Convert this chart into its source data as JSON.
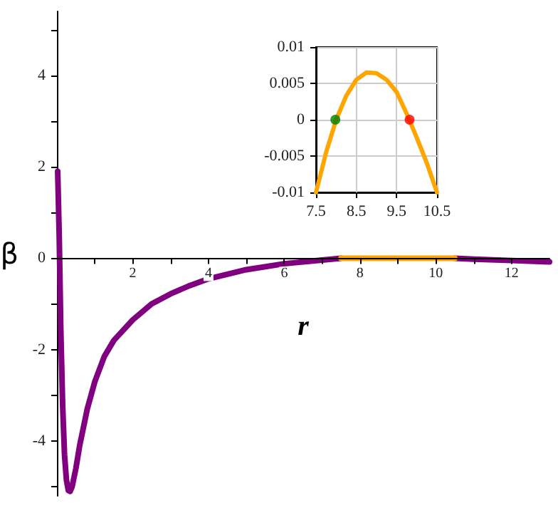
{
  "chart_data": [
    {
      "type": "line",
      "xlabel": "r",
      "ylabel": "β",
      "xlim": [
        0,
        13
      ],
      "ylim": [
        -5.2,
        5.4
      ],
      "xticks": [
        {
          "value": 1,
          "label": null
        },
        2,
        {
          "value": 3,
          "label": null
        },
        4,
        {
          "value": 5,
          "label": null
        },
        6,
        {
          "value": 7,
          "label": null
        },
        8,
        {
          "value": 9,
          "label": null
        },
        10,
        {
          "value": 11,
          "label": null
        },
        12
      ],
      "yticks": [
        {
          "value": -5,
          "label": null
        },
        -4,
        {
          "value": -3,
          "label": null
        },
        -2,
        {
          "value": -1,
          "label": null
        },
        0,
        {
          "value": 1,
          "label": null
        },
        2,
        {
          "value": 3,
          "label": null
        },
        4,
        {
          "value": 5,
          "label": null
        }
      ],
      "grid": false,
      "series": [
        {
          "color": "#800080",
          "x": [
            0.02,
            0.06,
            0.1,
            0.15,
            0.2,
            0.25,
            0.3,
            0.35,
            0.4,
            0.5,
            0.6,
            0.8,
            1,
            1.25,
            1.5,
            2,
            2.5,
            3,
            3.5,
            4,
            5,
            6,
            7,
            7.5
          ],
          "values": [
            1.9,
            0.5,
            -1.5,
            -3.2,
            -4.3,
            -4.85,
            -5.08,
            -5.1,
            -5.0,
            -4.6,
            -4.1,
            -3.3,
            -2.7,
            -2.15,
            -1.8,
            -1.35,
            -1.0,
            -0.78,
            -0.6,
            -0.45,
            -0.25,
            -0.12,
            -0.04,
            0
          ]
        },
        {
          "color": "#800080",
          "x": [
            10.5,
            11,
            12,
            13
          ],
          "values": [
            0,
            -0.02,
            -0.05,
            -0.08
          ]
        },
        {
          "color": "#ffa500",
          "x": [
            7.5,
            8,
            8.9,
            9.8,
            10.5
          ],
          "values": [
            0,
            0,
            0,
            0,
            0
          ]
        }
      ]
    },
    {
      "type": "line",
      "xlim": [
        7.5,
        10.5
      ],
      "ylim": [
        -0.01,
        0.01
      ],
      "xticks": [
        7.5,
        8.5,
        9.5,
        10.5
      ],
      "yticks": [
        -0.01,
        -0.005,
        0,
        0.005,
        0.01
      ],
      "grid": true,
      "series": [
        {
          "color": "#ffa500",
          "x": [
            7.5,
            7.75,
            8,
            8.25,
            8.5,
            8.75,
            9,
            9.25,
            9.5,
            9.75,
            10,
            10.25,
            10.5
          ],
          "values": [
            -0.01,
            -0.0045,
            0,
            0.0033,
            0.0055,
            0.0065,
            0.0064,
            0.0055,
            0.0038,
            0.0008,
            -0.0025,
            -0.006,
            -0.01
          ]
        },
        {
          "type": "scatter",
          "color": "#008000",
          "x": [
            7.98
          ],
          "values": [
            0
          ]
        },
        {
          "type": "scatter",
          "color": "#ff0000",
          "x": [
            9.82
          ],
          "values": [
            0
          ]
        }
      ]
    }
  ]
}
